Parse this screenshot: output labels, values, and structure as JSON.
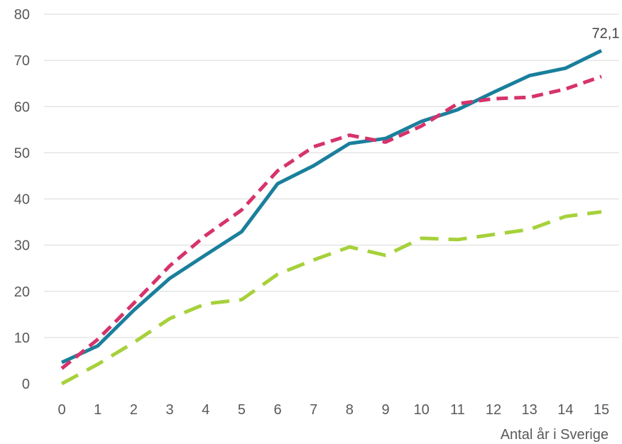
{
  "chart_data": {
    "type": "line",
    "title": "",
    "xlabel": "Antal år i Sverige",
    "ylabel": "",
    "x": [
      "0",
      "1",
      "2",
      "3",
      "4",
      "5",
      "6",
      "7",
      "8",
      "9",
      "10",
      "11",
      "12",
      "13",
      "14",
      "15"
    ],
    "ylim": [
      0,
      80
    ],
    "yticks": [
      "0",
      "10",
      "20",
      "30",
      "40",
      "50",
      "60",
      "70",
      "80"
    ],
    "grid": true,
    "legend": "none",
    "series": [
      {
        "color": "#1a7f9c",
        "style": "solid",
        "values": [
          4.6,
          8.2,
          15.9,
          22.8,
          27.9,
          32.9,
          43.3,
          47.2,
          52.0,
          53.1,
          56.8,
          59.3,
          63.1,
          66.7,
          68.3,
          72.1
        ],
        "end_label": "72,1"
      },
      {
        "color": "#d6336c",
        "style": "dashed",
        "values": [
          3.3,
          9.6,
          17.4,
          25.5,
          32.1,
          37.6,
          46.1,
          51.3,
          53.8,
          52.3,
          55.8,
          60.6,
          61.7,
          62.0,
          63.8,
          66.5
        ]
      },
      {
        "color": "#a6d13b",
        "style": "long-dashed",
        "values": [
          0.0,
          4.2,
          8.9,
          14.1,
          17.3,
          18.2,
          23.7,
          26.8,
          29.6,
          27.8,
          31.5,
          31.2,
          32.3,
          33.4,
          36.2,
          37.2
        ]
      }
    ]
  }
}
